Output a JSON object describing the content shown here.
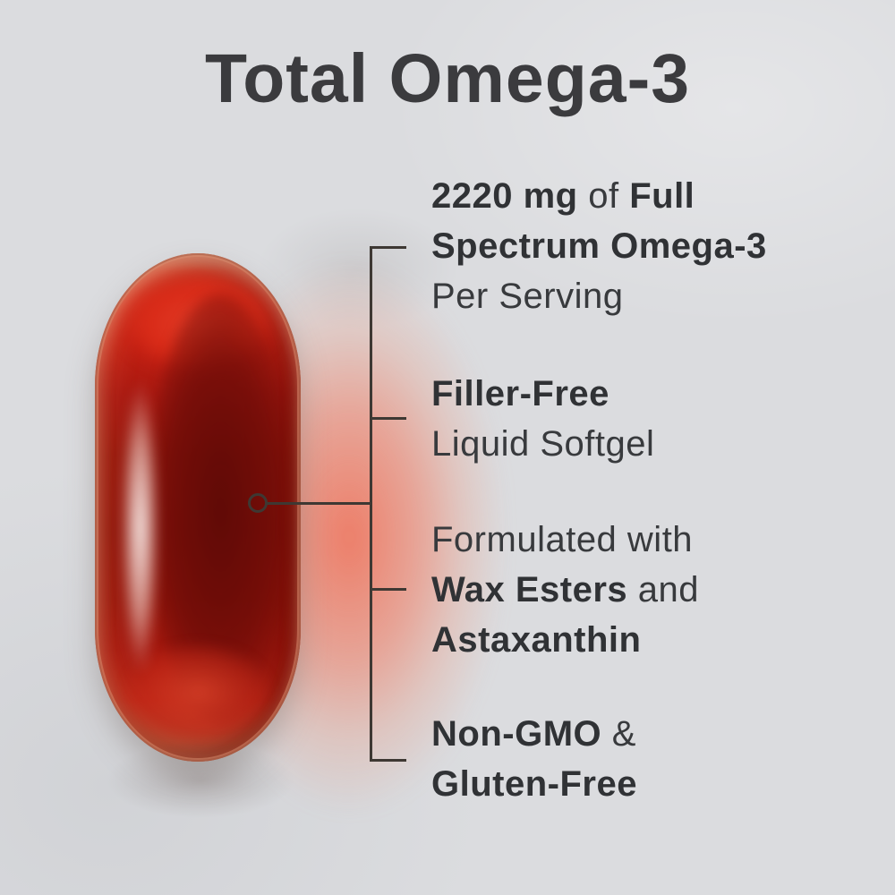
{
  "page": {
    "background_color": "#dbdcdf",
    "title": "Total Omega-3",
    "title_color": "#3b3b3e"
  },
  "capsule": {
    "description": "red liquid omega-3 softgel capsule, vertical orientation",
    "body_dark_red": "#8c1208",
    "bright_red": "#d5301d",
    "rim_tan": "#d08a6e",
    "highlight": "#fdf3ef",
    "glow_salmon": "#ee9a81"
  },
  "connector": {
    "line_color": "#3e3833",
    "marker": "ring"
  },
  "callouts": [
    {
      "id": "omega-amount",
      "lines": [
        {
          "segments": [
            {
              "text": "2220 mg",
              "bold": true
            },
            {
              "text": " of ",
              "bold": false
            },
            {
              "text": "Full",
              "bold": true
            }
          ]
        },
        {
          "segments": [
            {
              "text": "Spectrum Omega-3",
              "bold": true
            }
          ]
        },
        {
          "segments": [
            {
              "text": "Per Serving",
              "bold": false
            }
          ]
        }
      ]
    },
    {
      "id": "filler-free",
      "lines": [
        {
          "segments": [
            {
              "text": "Filler-Free",
              "bold": true
            }
          ]
        },
        {
          "segments": [
            {
              "text": "Liquid Softgel",
              "bold": false
            }
          ]
        }
      ]
    },
    {
      "id": "formulation",
      "lines": [
        {
          "segments": [
            {
              "text": "Formulated with",
              "bold": false
            }
          ]
        },
        {
          "segments": [
            {
              "text": "Wax Esters",
              "bold": true
            },
            {
              "text": " and",
              "bold": false
            }
          ]
        },
        {
          "segments": [
            {
              "text": "Astaxanthin",
              "bold": true
            }
          ]
        }
      ]
    },
    {
      "id": "non-gmo",
      "lines": [
        {
          "segments": [
            {
              "text": "Non-GMO",
              "bold": true
            },
            {
              "text": " &",
              "bold": false
            }
          ]
        },
        {
          "segments": [
            {
              "text": "Gluten-Free",
              "bold": true
            }
          ]
        }
      ]
    }
  ]
}
